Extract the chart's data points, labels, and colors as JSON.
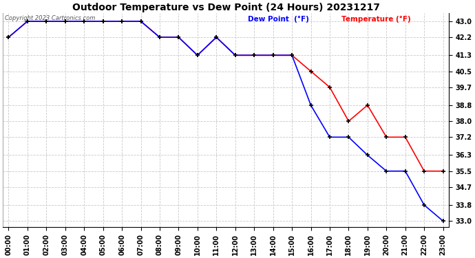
{
  "title": "Outdoor Temperature vs Dew Point (24 Hours) 20231217",
  "copyright": "Copyright 2023 Cartronics.com",
  "legend_dew": "Dew Point  (°F)",
  "legend_temp": "Temperature (°F)",
  "hours": [
    0,
    1,
    2,
    3,
    4,
    5,
    6,
    7,
    8,
    9,
    10,
    11,
    12,
    13,
    14,
    15,
    16,
    17,
    18,
    19,
    20,
    21,
    22,
    23
  ],
  "temperature": [
    42.2,
    43.0,
    43.0,
    43.0,
    43.0,
    43.0,
    43.0,
    43.0,
    42.2,
    42.2,
    41.3,
    42.2,
    41.3,
    41.3,
    41.3,
    41.3,
    40.5,
    39.7,
    38.0,
    38.8,
    37.2,
    37.2,
    35.5,
    35.5
  ],
  "dew_point": [
    42.2,
    43.0,
    43.0,
    43.0,
    43.0,
    43.0,
    43.0,
    43.0,
    42.2,
    42.2,
    41.3,
    42.2,
    41.3,
    41.3,
    41.3,
    41.3,
    38.8,
    37.2,
    37.2,
    36.3,
    35.5,
    35.5,
    33.8,
    33.0
  ],
  "yticks": [
    33.0,
    33.8,
    34.7,
    35.5,
    36.3,
    37.2,
    38.0,
    38.8,
    39.7,
    40.5,
    41.3,
    42.2,
    43.0
  ],
  "ylim_min": 32.7,
  "ylim_max": 43.4,
  "temp_color": "#ff0000",
  "dew_color": "#0000ff",
  "marker_color": "#000000",
  "bg_color": "#ffffff",
  "grid_color": "#c8c8c8",
  "title_fontsize": 10,
  "tick_fontsize": 7,
  "legend_fontsize": 7.5,
  "copyright_fontsize": 6,
  "copyright_color": "#555555"
}
